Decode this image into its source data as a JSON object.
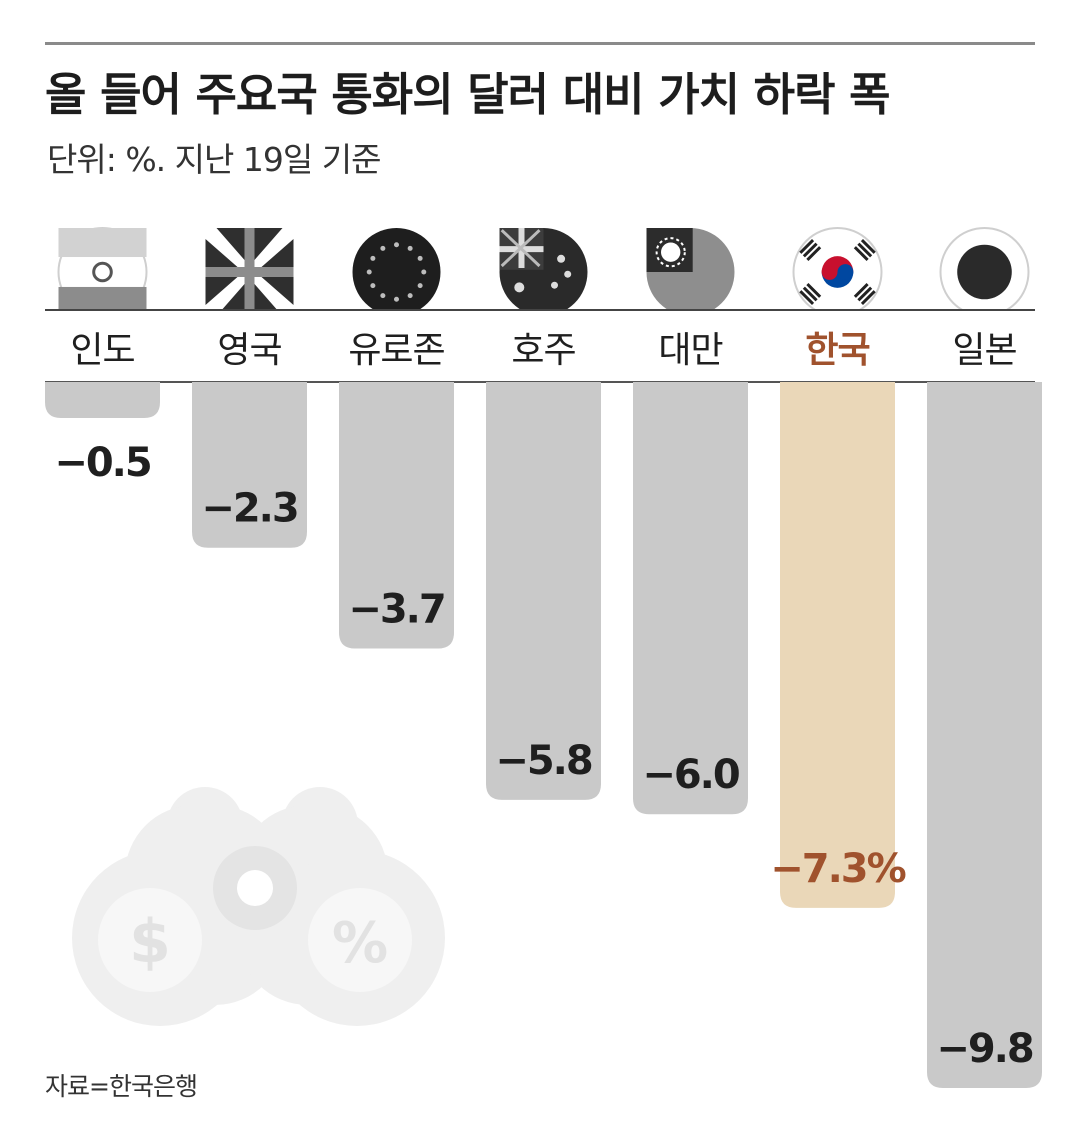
{
  "title": "올 들어 주요국 통화의 달러 대비 가치 하락 폭",
  "subtitle": "단위: %. 지난 19일 기준",
  "source": "자료=한국은행",
  "colors": {
    "bar": "#c9c9c9",
    "highlight_bar": "#ead7b8",
    "highlight_text": "#a0522d",
    "label_text": "#1f1f1f"
  },
  "chart_data": {
    "type": "bar",
    "categories": [
      "인도",
      "영국",
      "유로존",
      "호주",
      "대만",
      "한국",
      "일본"
    ],
    "values": [
      -0.5,
      -2.3,
      -3.7,
      -5.8,
      -6.0,
      -7.3,
      -9.8
    ],
    "value_labels": [
      "−0.5",
      "−2.3",
      "−3.7",
      "−5.8",
      "−6.0",
      "−7.3%",
      "−9.8"
    ],
    "highlight": "한국",
    "flag_icons": [
      "india-flag-icon",
      "uk-flag-icon",
      "eu-flag-icon",
      "australia-flag-icon",
      "taiwan-flag-icon",
      "korea-flag-icon",
      "japan-flag-icon"
    ],
    "ylim": [
      -9.8,
      0
    ],
    "orientation": "hanging",
    "decoration_icons": [
      "binoculars-icon",
      "dollar-icon",
      "percent-icon"
    ]
  }
}
